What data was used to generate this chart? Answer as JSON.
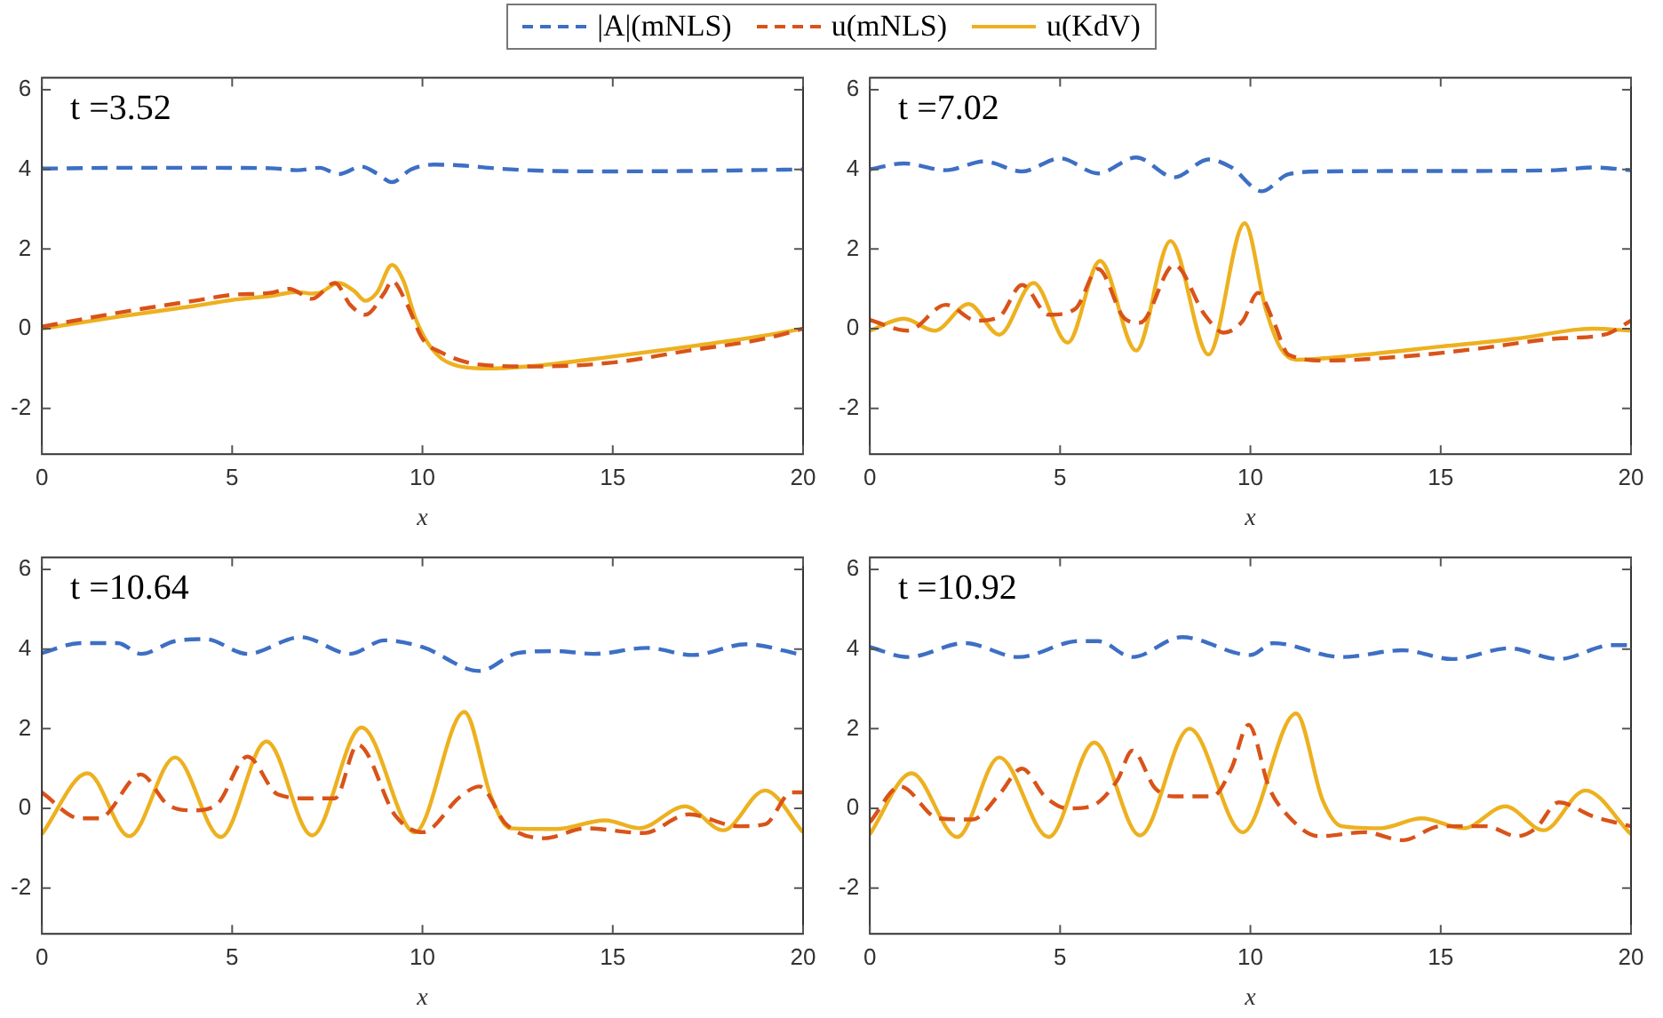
{
  "chart_data": [
    {
      "type": "line",
      "title": "t =3.52",
      "xlabel": "x",
      "xlim": [
        0,
        20
      ],
      "xticks": [
        0,
        5,
        10,
        15,
        20
      ],
      "ylim": [
        -3.15,
        6.3
      ],
      "yticks": [
        -2,
        0,
        2,
        4,
        6
      ],
      "legend": "top",
      "series": [
        {
          "name": "|A|(mNLS)",
          "color": "#3d6fc4",
          "line_style": "dashed",
          "x": [
            0,
            2,
            4,
            6,
            6.7,
            7.3,
            7.8,
            8.4,
            8.8,
            9.2,
            9.7,
            10.3,
            11,
            12,
            13,
            15,
            17,
            20
          ],
          "values": [
            4.02,
            4.04,
            4.04,
            4.03,
            3.98,
            4.04,
            3.88,
            4.07,
            3.9,
            3.68,
            4.0,
            4.12,
            4.1,
            4.02,
            3.97,
            3.95,
            3.96,
            4.0
          ]
        },
        {
          "name": "u(mNLS)",
          "color": "#d95319",
          "line_style": "dashed",
          "x": [
            0,
            2,
            4,
            5,
            6,
            6.5,
            7.1,
            7.7,
            8.1,
            8.5,
            9.0,
            9.2,
            9.6,
            10.0,
            10.5,
            11.5,
            13,
            15,
            17,
            19,
            20
          ],
          "values": [
            0.05,
            0.4,
            0.7,
            0.85,
            0.9,
            1.0,
            0.75,
            1.15,
            0.6,
            0.35,
            0.9,
            1.2,
            0.6,
            -0.25,
            -0.6,
            -0.9,
            -0.95,
            -0.85,
            -0.55,
            -0.25,
            0
          ]
        },
        {
          "name": "u(KdV)",
          "color": "#edb120",
          "line_style": "solid",
          "x": [
            0,
            2,
            4,
            5,
            6,
            6.7,
            7.1,
            7.3,
            7.8,
            8.2,
            8.5,
            8.8,
            9.2,
            9.5,
            9.8,
            10.1,
            10.5,
            11,
            11.8,
            13,
            15,
            17,
            19,
            20
          ],
          "values": [
            0,
            0.3,
            0.57,
            0.72,
            0.82,
            0.92,
            0.88,
            0.9,
            1.15,
            0.95,
            0.7,
            0.9,
            1.6,
            1.2,
            0.3,
            -0.3,
            -0.75,
            -0.95,
            -1.0,
            -0.93,
            -0.7,
            -0.45,
            -0.17,
            0
          ]
        }
      ]
    },
    {
      "type": "line",
      "title": "t =7.02",
      "xlabel": "x",
      "xlim": [
        0,
        20
      ],
      "xticks": [
        0,
        5,
        10,
        15,
        20
      ],
      "ylim": [
        -3.15,
        6.3
      ],
      "yticks": [
        -2,
        0,
        2,
        4,
        6
      ],
      "series": [
        {
          "color": "#3d6fc4",
          "line_style": "dashed",
          "x": [
            0,
            0.9,
            2.0,
            3.0,
            4.0,
            5.0,
            6.0,
            7.0,
            8.0,
            8.9,
            9.5,
            10.3,
            11.0,
            12,
            15,
            18,
            19,
            20
          ],
          "values": [
            4.0,
            4.15,
            3.98,
            4.2,
            3.95,
            4.28,
            3.9,
            4.3,
            3.8,
            4.25,
            4.05,
            3.45,
            3.88,
            3.95,
            3.96,
            3.98,
            4.05,
            3.98
          ]
        },
        {
          "color": "#d95319",
          "line_style": "dashed",
          "x": [
            0,
            1,
            2.0,
            2.8,
            3.4,
            4.0,
            4.7,
            5.4,
            6.0,
            6.7,
            7.1,
            8.0,
            8.8,
            9.3,
            9.8,
            10.2,
            10.6,
            11.0,
            12,
            14,
            16,
            18,
            19.3,
            20
          ],
          "values": [
            0.22,
            -0.05,
            0.6,
            0.2,
            0.3,
            1.1,
            0.35,
            0.5,
            1.5,
            0.25,
            0.15,
            1.6,
            0.35,
            -0.1,
            0.2,
            0.9,
            0.2,
            -0.65,
            -0.8,
            -0.7,
            -0.5,
            -0.25,
            -0.15,
            0.2
          ]
        },
        {
          "color": "#edb120",
          "line_style": "solid",
          "x": [
            0,
            0.9,
            1.7,
            2.6,
            3.4,
            4.3,
            5.2,
            6.05,
            7.0,
            7.9,
            8.9,
            9.85,
            10.4,
            10.8,
            11.2,
            13,
            15,
            17,
            19,
            20
          ],
          "values": [
            -0.05,
            0.25,
            -0.05,
            0.62,
            -0.15,
            1.15,
            -0.35,
            1.7,
            -0.55,
            2.2,
            -0.65,
            2.65,
            0.5,
            -0.5,
            -0.78,
            -0.65,
            -0.45,
            -0.25,
            0.0,
            -0.05
          ]
        }
      ]
    },
    {
      "type": "line",
      "title": "t =10.64",
      "xlabel": "x",
      "xlim": [
        0,
        20
      ],
      "xticks": [
        0,
        5,
        10,
        15,
        20
      ],
      "ylim": [
        -3.15,
        6.3
      ],
      "yticks": [
        -2,
        0,
        2,
        4,
        6
      ],
      "series": [
        {
          "color": "#3d6fc4",
          "line_style": "dashed",
          "x": [
            0,
            1,
            2,
            2.6,
            3.5,
            4.3,
            5.4,
            6.8,
            8.1,
            9,
            10,
            11.5,
            12.5,
            13.5,
            14.5,
            15.9,
            17.1,
            18.5,
            20
          ],
          "values": [
            3.9,
            4.15,
            4.15,
            3.88,
            4.2,
            4.25,
            3.88,
            4.3,
            3.88,
            4.22,
            4.05,
            3.45,
            3.9,
            3.95,
            3.88,
            4.03,
            3.85,
            4.12,
            3.85
          ]
        },
        {
          "color": "#d95319",
          "line_style": "dashed",
          "x": [
            0,
            1.0,
            1.5,
            2.6,
            3.3,
            4.0,
            4.6,
            5.4,
            6.2,
            7.0,
            7.7,
            8.3,
            9.3,
            10.0,
            11.0,
            11.5,
            12.2,
            13.2,
            14.3,
            15.8,
            17.0,
            18.3,
            19.0,
            19.7,
            20
          ],
          "values": [
            0.4,
            -0.25,
            -0.25,
            0.85,
            0.1,
            -0.05,
            0.1,
            1.3,
            0.35,
            0.25,
            0.25,
            1.6,
            -0.2,
            -0.6,
            0.3,
            0.55,
            -0.4,
            -0.75,
            -0.5,
            -0.62,
            -0.15,
            -0.45,
            -0.4,
            0.4,
            0.4
          ]
        },
        {
          "color": "#edb120",
          "line_style": "solid",
          "x": [
            0,
            1.2,
            2.3,
            3.5,
            4.7,
            5.9,
            7.1,
            8.4,
            9.8,
            11.1,
            11.8,
            12.3,
            13.5,
            14.8,
            15.7,
            16.9,
            17.9,
            19.0,
            20
          ],
          "values": [
            -0.65,
            0.88,
            -0.7,
            1.28,
            -0.72,
            1.68,
            -0.68,
            2.03,
            -0.6,
            2.42,
            0.3,
            -0.5,
            -0.52,
            -0.3,
            -0.5,
            0.05,
            -0.55,
            0.45,
            -0.6
          ]
        }
      ]
    },
    {
      "type": "line",
      "title": "t =10.92",
      "xlabel": "x",
      "xlim": [
        0,
        20
      ],
      "xticks": [
        0,
        5,
        10,
        15,
        20
      ],
      "ylim": [
        -3.15,
        6.3
      ],
      "yticks": [
        -2,
        0,
        2,
        4,
        6
      ],
      "series": [
        {
          "color": "#3d6fc4",
          "line_style": "dashed",
          "x": [
            0,
            1,
            2.5,
            3.9,
            5.5,
            6.0,
            6.9,
            8.2,
            10,
            10.6,
            12.4,
            14,
            15.3,
            16.8,
            18.1,
            19.5,
            20
          ],
          "values": [
            4.05,
            3.8,
            4.15,
            3.8,
            4.2,
            4.2,
            3.8,
            4.3,
            3.85,
            4.15,
            3.8,
            3.97,
            3.75,
            4.02,
            3.75,
            4.1,
            4.1
          ]
        },
        {
          "color": "#d95319",
          "line_style": "dashed",
          "x": [
            0,
            0.8,
            1.8,
            2.7,
            3.4,
            4.0,
            4.6,
            5.2,
            5.8,
            6.5,
            6.9,
            7.5,
            8.0,
            9.0,
            9.5,
            9.95,
            10.5,
            11.0,
            11.8,
            13,
            14,
            15,
            16.2,
            17.0,
            17.5,
            18.1,
            19.0,
            20
          ],
          "values": [
            -0.35,
            0.55,
            -0.25,
            -0.28,
            0.35,
            1.0,
            0.3,
            0.0,
            0.05,
            0.7,
            1.45,
            0.5,
            0.3,
            0.3,
            1.0,
            2.1,
            0.5,
            -0.2,
            -0.7,
            -0.6,
            -0.8,
            -0.45,
            -0.45,
            -0.7,
            -0.5,
            0.15,
            -0.2,
            -0.45
          ]
        },
        {
          "color": "#edb120",
          "line_style": "solid",
          "x": [
            0,
            1.1,
            2.3,
            3.4,
            4.7,
            5.9,
            7.1,
            8.4,
            9.8,
            11.2,
            11.9,
            12.4,
            13.4,
            14.5,
            15.6,
            16.7,
            17.7,
            18.8,
            20
          ],
          "values": [
            -0.65,
            0.88,
            -0.72,
            1.28,
            -0.72,
            1.65,
            -0.68,
            2.0,
            -0.6,
            2.38,
            0.2,
            -0.45,
            -0.5,
            -0.25,
            -0.5,
            0.05,
            -0.55,
            0.45,
            -0.65
          ]
        }
      ]
    }
  ]
}
